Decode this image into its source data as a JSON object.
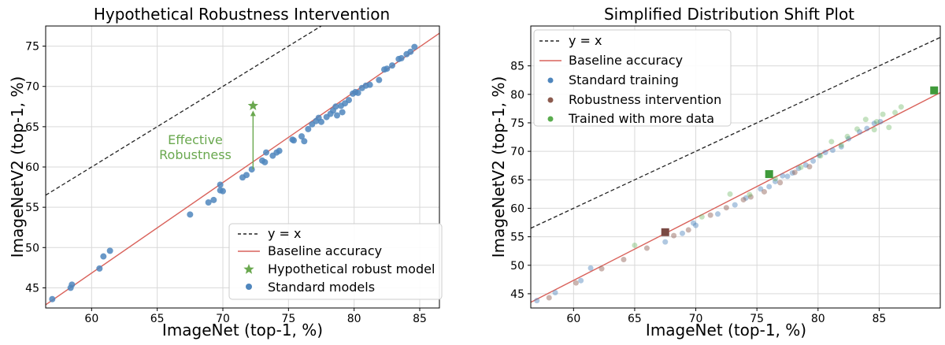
{
  "chart_data": [
    {
      "type": "scatter",
      "title": "Hypothetical Robustness Intervention",
      "xlabel": "ImageNet (top-1, %)",
      "ylabel": "ImageNetV2 (top-1, %)",
      "xlim": [
        56.5,
        86.5
      ],
      "ylim": [
        42.5,
        77.5
      ],
      "xticks": [
        60,
        65,
        70,
        75,
        80,
        85
      ],
      "yticks": [
        45,
        50,
        55,
        60,
        65,
        70,
        75
      ],
      "grid": true,
      "legend_position": "bottom-right",
      "legend": [
        "y = x",
        "Baseline accuracy",
        "Hypothetical robust model",
        "Standard models"
      ],
      "identity_line": {
        "label": "y = x",
        "color": "#222222"
      },
      "baseline": {
        "label": "Baseline accuracy",
        "color": "#d9625b",
        "x": [
          56.5,
          86.5
        ],
        "y": [
          42.9,
          76.6
        ]
      },
      "series": [
        {
          "name": "Standard models",
          "color": "#4f86bd",
          "points": [
            [
              57.0,
              43.6
            ],
            [
              58.4,
              45.0
            ],
            [
              58.5,
              45.4
            ],
            [
              60.6,
              47.4
            ],
            [
              60.9,
              48.9
            ],
            [
              61.4,
              49.6
            ],
            [
              67.5,
              54.1
            ],
            [
              68.9,
              55.6
            ],
            [
              69.3,
              55.9
            ],
            [
              69.8,
              57.1
            ],
            [
              69.8,
              57.8
            ],
            [
              70.0,
              57.0
            ],
            [
              71.5,
              58.7
            ],
            [
              71.8,
              59.0
            ],
            [
              72.2,
              59.7
            ],
            [
              73.0,
              60.8
            ],
            [
              73.2,
              60.6
            ],
            [
              73.3,
              61.8
            ],
            [
              73.8,
              61.4
            ],
            [
              74.1,
              61.8
            ],
            [
              74.3,
              62.0
            ],
            [
              75.3,
              63.4
            ],
            [
              75.4,
              63.3
            ],
            [
              76.0,
              63.8
            ],
            [
              76.2,
              63.2
            ],
            [
              76.5,
              64.7
            ],
            [
              76.8,
              65.3
            ],
            [
              77.1,
              65.7
            ],
            [
              77.3,
              66.1
            ],
            [
              77.5,
              65.6
            ],
            [
              77.9,
              66.2
            ],
            [
              78.2,
              66.6
            ],
            [
              78.4,
              67.0
            ],
            [
              78.6,
              67.5
            ],
            [
              78.7,
              66.4
            ],
            [
              79.0,
              67.6
            ],
            [
              79.3,
              67.9
            ],
            [
              79.6,
              68.3
            ],
            [
              79.1,
              66.8
            ],
            [
              79.9,
              69.1
            ],
            [
              80.1,
              69.3
            ],
            [
              80.3,
              69.2
            ],
            [
              80.6,
              69.8
            ],
            [
              80.9,
              70.1
            ],
            [
              81.2,
              70.2
            ],
            [
              81.9,
              70.8
            ],
            [
              82.3,
              72.1
            ],
            [
              82.5,
              72.2
            ],
            [
              82.9,
              72.6
            ],
            [
              83.4,
              73.4
            ],
            [
              83.6,
              73.5
            ],
            [
              84.0,
              74.0
            ],
            [
              84.3,
              74.3
            ],
            [
              84.6,
              74.9
            ]
          ]
        },
        {
          "name": "Hypothetical robust model",
          "color": "#6aa84f",
          "marker": "star",
          "points": [
            [
              72.3,
              67.6
            ]
          ]
        }
      ],
      "annotation": {
        "lines": [
          "Effective",
          "Robustness"
        ],
        "color": "#6aa84f",
        "arrow_from": [
          72.3,
          59.7
        ],
        "arrow_to": [
          72.3,
          67.0
        ]
      }
    },
    {
      "type": "scatter",
      "title": "Simplified Distribution Shift Plot",
      "xlabel": "ImageNet (top-1, %)",
      "ylabel": "ImageNetV2 (top-1, %)",
      "xlim": [
        56.5,
        90.0
      ],
      "ylim": [
        42.5,
        92.0
      ],
      "xticks": [
        60,
        65,
        70,
        75,
        80,
        85
      ],
      "yticks": [
        45,
        50,
        55,
        60,
        65,
        70,
        75,
        80,
        85
      ],
      "grid": true,
      "legend_position": "top-left",
      "legend": [
        "y = x",
        "Baseline accuracy",
        "Standard training",
        "Robustness intervention",
        "Trained with more data"
      ],
      "identity_line": {
        "label": "y = x",
        "color": "#222222"
      },
      "baseline": {
        "label": "Baseline accuracy",
        "color": "#d9625b",
        "x": [
          56.5,
          90.0
        ],
        "y": [
          43.5,
          80.3
        ]
      },
      "series": [
        {
          "name": "Standard training",
          "color": "#4f86bd",
          "alpha": 0.45,
          "points": [
            [
              57.0,
              43.8
            ],
            [
              58.5,
              45.2
            ],
            [
              60.6,
              47.3
            ],
            [
              61.4,
              49.5
            ],
            [
              67.5,
              54.1
            ],
            [
              68.9,
              55.6
            ],
            [
              69.8,
              57.4
            ],
            [
              70.0,
              57.0
            ],
            [
              71.8,
              59.0
            ],
            [
              73.2,
              60.6
            ],
            [
              74.1,
              61.8
            ],
            [
              75.3,
              63.4
            ],
            [
              76.0,
              63.8
            ],
            [
              76.5,
              64.7
            ],
            [
              77.1,
              65.7
            ],
            [
              77.5,
              65.6
            ],
            [
              77.9,
              66.2
            ],
            [
              78.4,
              67.0
            ],
            [
              79.0,
              67.6
            ],
            [
              79.6,
              68.3
            ],
            [
              80.1,
              69.3
            ],
            [
              80.6,
              69.8
            ],
            [
              81.2,
              70.2
            ],
            [
              81.9,
              70.8
            ],
            [
              82.5,
              72.2
            ],
            [
              83.4,
              73.4
            ],
            [
              84.0,
              74.0
            ],
            [
              84.6,
              74.9
            ],
            [
              85.1,
              75.2
            ]
          ]
        },
        {
          "name": "Robustness intervention",
          "color": "#8c5b4f",
          "alpha": 0.45,
          "points": [
            [
              58.0,
              44.3
            ],
            [
              60.2,
              46.9
            ],
            [
              62.3,
              49.4
            ],
            [
              64.1,
              51.0
            ],
            [
              66.0,
              53.0
            ],
            [
              68.2,
              55.2
            ],
            [
              69.4,
              56.2
            ],
            [
              71.2,
              58.8
            ],
            [
              72.5,
              60.1
            ],
            [
              73.9,
              61.5
            ],
            [
              74.5,
              62.0
            ],
            [
              75.6,
              62.9
            ],
            [
              76.9,
              64.5
            ],
            [
              78.1,
              66.3
            ],
            [
              79.3,
              67.3
            ]
          ]
        },
        {
          "name": "Trained with more data",
          "color": "#5aac4e",
          "alpha": 0.35,
          "points": [
            [
              65.0,
              53.5
            ],
            [
              70.5,
              58.5
            ],
            [
              72.8,
              62.5
            ],
            [
              74.4,
              62.4
            ],
            [
              76.5,
              65.2
            ],
            [
              78.6,
              67.2
            ],
            [
              80.2,
              69.2
            ],
            [
              81.1,
              71.7
            ],
            [
              81.9,
              71.1
            ],
            [
              82.4,
              72.6
            ],
            [
              83.2,
              73.9
            ],
            [
              83.9,
              75.6
            ],
            [
              84.6,
              73.8
            ],
            [
              85.3,
              76.5
            ],
            [
              85.8,
              74.2
            ],
            [
              86.3,
              76.8
            ],
            [
              86.8,
              77.8
            ],
            [
              84.8,
              75.2
            ]
          ]
        },
        {
          "name": "Robustness intervention highlight",
          "color": "#7a4a44",
          "marker": "square",
          "points": [
            [
              67.5,
              55.8
            ]
          ]
        },
        {
          "name": "Trained with more data highlight",
          "color": "#3f9a3a",
          "marker": "square",
          "points": [
            [
              76.0,
              66.0
            ],
            [
              89.5,
              80.7
            ]
          ]
        }
      ]
    }
  ]
}
